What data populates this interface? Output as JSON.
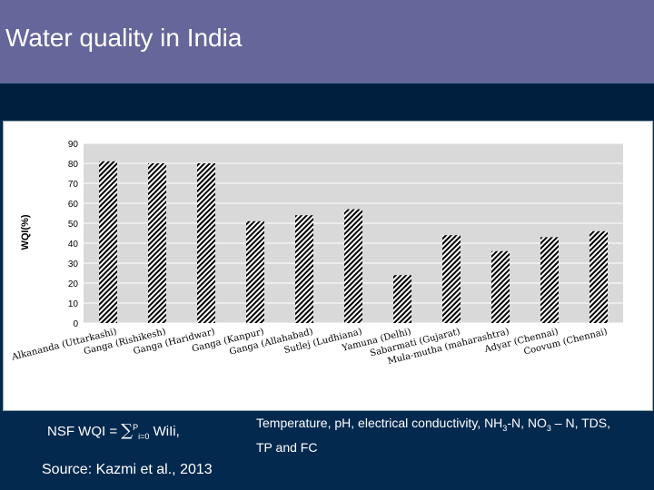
{
  "header": {
    "title": "Water quality in India"
  },
  "chart_data": {
    "type": "bar",
    "ylabel": "WQI(%)",
    "ylim": [
      0,
      90
    ],
    "yticks": [
      "0",
      "10",
      "20",
      "30",
      "40",
      "50",
      "60",
      "70",
      "80",
      "90"
    ],
    "grid": true,
    "bar_pattern": "diagonal-hatch",
    "categories": [
      "Alkananda (Uttarkashi)",
      "Ganga (Rishikesh)",
      "Ganga (Haridwar)",
      "Ganga (Kanpur)",
      "Ganga (Allahabad)",
      "Sutlej (Ludhiana)",
      "Yamuna (Delhi)",
      "Sabarmati (Gujarat)",
      "Mula-mutha (maharashtra)",
      "Adyar (Chennai)",
      "Coovum (Chennai)"
    ],
    "values": [
      81,
      80,
      80,
      51,
      54,
      57,
      24,
      44,
      36,
      43,
      46
    ]
  },
  "formula": {
    "prefix": "NSF WQI = ",
    "sum_symbol": "∑",
    "upper": "P",
    "lower": "i=0",
    "term": "WiIi,"
  },
  "parameters": {
    "part1": "Temperature, pH, electrical conductivity, NH",
    "sub1": "3",
    "part2": "-N, NO",
    "sub2": "3",
    "part3": " – N, TDS, TP and FC"
  },
  "source": {
    "text": "Source: Kazmi et al., 2013"
  }
}
